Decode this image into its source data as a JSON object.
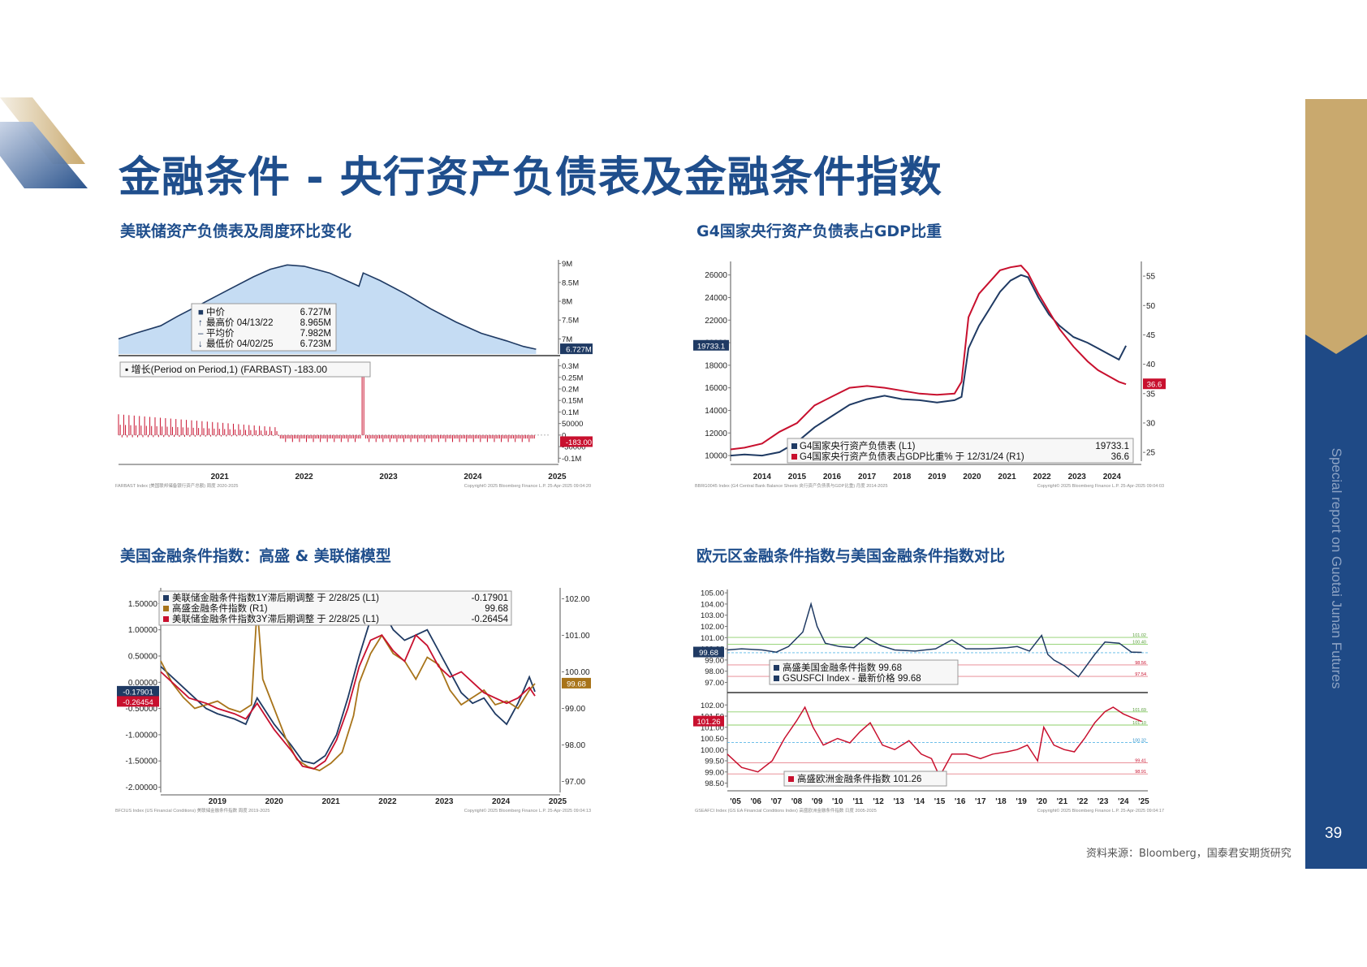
{
  "page": {
    "title": "金融条件 - 央行资产负债表及金融条件指数",
    "side_label": "Special report on Guotai Junan Futures",
    "page_number": "39",
    "source": "资料来源：Bloomberg，国泰君安期货研究",
    "colors": {
      "brand_blue": "#1f4e8c",
      "gold": "#c9a96e",
      "navy": "#1f4a86"
    }
  },
  "chart_data": [
    {
      "id": "fed-balance-sheet",
      "subtitle": "美联储资产负债表及周度环比变化",
      "type": "area",
      "x_ticks": [
        "2021",
        "2022",
        "2023",
        "2024",
        "2025"
      ],
      "upper": {
        "y_ticks": [
          "9M",
          "8.5M",
          "8M",
          "7.5M",
          "7M"
        ],
        "ylim": [
          6.6,
          9.1
        ],
        "x": [
          2020.3,
          2020.5,
          2020.8,
          2021.0,
          2021.3,
          2021.6,
          2021.9,
          2022.1,
          2022.3,
          2022.5,
          2022.8,
          2023.0,
          2023.15,
          2023.2,
          2023.4,
          2023.7,
          2024.0,
          2024.3,
          2024.6,
          2024.9,
          2025.1,
          2025.25
        ],
        "y": [
          7.0,
          7.15,
          7.35,
          7.6,
          7.95,
          8.3,
          8.65,
          8.85,
          8.965,
          8.93,
          8.75,
          8.55,
          8.4,
          8.75,
          8.55,
          8.2,
          7.8,
          7.45,
          7.15,
          6.95,
          6.8,
          6.727
        ],
        "last_label": "6.727M",
        "legend": [
          {
            "label": "中价",
            "value": "6.727M",
            "marker": "■"
          },
          {
            "label": "最高价 04/13/22",
            "value": "8.965M",
            "marker": "↑"
          },
          {
            "label": "平均价",
            "value": "7.982M",
            "marker": "–"
          },
          {
            "label": "最低价 04/02/25",
            "value": "6.723M",
            "marker": "↓"
          }
        ]
      },
      "lower": {
        "legend": "增长(Period on Period,1) (FARBAST) -183.00",
        "y_ticks": [
          "0.3M",
          "0.25M",
          "0.2M",
          "0.15M",
          "0.1M",
          "50000",
          "0",
          "-50000",
          "-0.1M"
        ],
        "ylim": [
          -0.12,
          0.33
        ],
        "last_label": "-183.00",
        "spike": {
          "x": 2023.2,
          "value": 0.3
        }
      },
      "footer_left": "FARBAST Index (美国联邦储备银行资产总额) 周度 2020-2025",
      "footer_right": "Copyright© 2025 Bloomberg Finance L.P.  25-Apr-2025 09:04:20"
    },
    {
      "id": "g4-cb-balance-gdp",
      "subtitle": "G4国家央行资产负债表占GDP比重",
      "type": "line",
      "x_ticks": [
        "2014",
        "2015",
        "2016",
        "2017",
        "2018",
        "2019",
        "2020",
        "2021",
        "2022",
        "2023",
        "2024"
      ],
      "xlim": [
        2013.6,
        2025.2
      ],
      "left_ticks": [
        "26000",
        "24000",
        "22000",
        "20000",
        "18000",
        "16000",
        "14000",
        "12000",
        "10000"
      ],
      "ylim_left": [
        9500,
        27200
      ],
      "right_ticks": [
        "55",
        "50",
        "45",
        "40",
        "35",
        "30",
        "25"
      ],
      "ylim_right": [
        23.5,
        57.5
      ],
      "series": [
        {
          "name": "G4国家央行资产负债表 (L1)",
          "axis": "left",
          "color": "#1f3a63",
          "x": [
            2013.6,
            2014.0,
            2014.5,
            2015.0,
            2015.5,
            2016.0,
            2016.5,
            2017.0,
            2017.5,
            2018.0,
            2018.5,
            2019.0,
            2019.5,
            2020.0,
            2020.2,
            2020.4,
            2020.7,
            2021.0,
            2021.3,
            2021.6,
            2021.9,
            2022.1,
            2022.4,
            2022.7,
            2023.0,
            2023.4,
            2023.8,
            2024.1,
            2024.4,
            2024.7,
            2024.9
          ],
          "y": [
            10000,
            10100,
            10000,
            10300,
            11200,
            12500,
            13500,
            14500,
            15000,
            15300,
            15000,
            14900,
            14700,
            14900,
            15200,
            19500,
            21500,
            23000,
            24500,
            25500,
            26000,
            25800,
            24000,
            22500,
            21500,
            20500,
            20000,
            19500,
            19000,
            18500,
            19733
          ]
        },
        {
          "name": "G4国家央行资产负债表占GDP比重% 于 12/31/24 (R1)",
          "axis": "right",
          "color": "#c8102e",
          "x": [
            2013.6,
            2014.0,
            2014.5,
            2015.0,
            2015.5,
            2016.0,
            2016.5,
            2017.0,
            2017.5,
            2018.0,
            2018.5,
            2019.0,
            2019.5,
            2020.0,
            2020.2,
            2020.4,
            2020.7,
            2021.0,
            2021.3,
            2021.6,
            2021.9,
            2022.1,
            2022.4,
            2022.7,
            2023.0,
            2023.4,
            2023.8,
            2024.1,
            2024.4,
            2024.7,
            2024.9
          ],
          "y": [
            25.5,
            25.8,
            26.5,
            28.5,
            30.0,
            33.0,
            34.5,
            36.0,
            36.3,
            36.0,
            35.5,
            35.0,
            34.8,
            35.0,
            37.0,
            48.0,
            52.0,
            54.0,
            56.0,
            56.5,
            56.8,
            55.5,
            52.0,
            49.0,
            46.0,
            43.0,
            40.5,
            39.0,
            38.0,
            37.0,
            36.6
          ]
        }
      ],
      "legend_values": [
        "19733.1",
        "36.6"
      ],
      "last_labels": [
        "19733.1",
        "36.6"
      ],
      "footer_left": "BBRG0045 Index (G4 Central Bank Balance Sheets 央行资产负债表与GDP比重) 月度 2014-2025",
      "footer_right": "Copyright© 2025 Bloomberg Finance L.P.  25-Apr-2025 09:04:03"
    },
    {
      "id": "us-fci-gs-fed",
      "subtitle": "美国金融条件指数：高盛 & 美联储模型",
      "type": "line",
      "x_ticks": [
        "2019",
        "2020",
        "2021",
        "2022",
        "2023",
        "2024",
        "2025"
      ],
      "xlim": [
        2018.5,
        2025.4
      ],
      "left_ticks": [
        "1.50000",
        "1.00000",
        "0.50000",
        "0.00000",
        "-0.50000",
        "-1.00000",
        "-1.50000",
        "-2.00000"
      ],
      "ylim_left": [
        -2.1,
        1.8
      ],
      "right_ticks": [
        "102.00",
        "101.00",
        "100.00",
        "99.00",
        "98.00",
        "97.00"
      ],
      "ylim_right": [
        96.7,
        102.3
      ],
      "series": [
        {
          "name": "美联储金融条件指数1Y滞后期调整 于 2/28/25 (L1) -0.17901",
          "axis": "left",
          "color": "#1f3a63",
          "x": [
            2018.5,
            2018.8,
            2019.0,
            2019.3,
            2019.5,
            2019.8,
            2020.0,
            2020.2,
            2020.5,
            2020.8,
            2021.0,
            2021.2,
            2021.4,
            2021.6,
            2021.8,
            2022.0,
            2022.2,
            2022.4,
            2022.6,
            2022.8,
            2023.0,
            2023.2,
            2023.4,
            2023.6,
            2023.8,
            2024.0,
            2024.2,
            2024.4,
            2024.6,
            2024.8,
            2025.0,
            2025.1
          ],
          "y": [
            0.3,
            0.0,
            -0.2,
            -0.5,
            -0.6,
            -0.7,
            -0.8,
            -0.3,
            -0.8,
            -1.2,
            -1.5,
            -1.55,
            -1.4,
            -1.0,
            -0.3,
            0.5,
            1.2,
            1.4,
            1.0,
            0.8,
            0.9,
            1.0,
            0.6,
            0.2,
            -0.2,
            -0.4,
            -0.3,
            -0.6,
            -0.8,
            -0.4,
            0.1,
            -0.18
          ]
        },
        {
          "name": "高盛金融条件指数 (R1) 99.68",
          "axis": "right",
          "color": "#a8741a",
          "x": [
            2018.5,
            2018.7,
            2018.9,
            2019.1,
            2019.3,
            2019.5,
            2019.7,
            2019.9,
            2020.1,
            2020.2,
            2020.3,
            2020.5,
            2020.7,
            2020.9,
            2021.1,
            2021.3,
            2021.5,
            2021.7,
            2021.9,
            2022.0,
            2022.2,
            2022.4,
            2022.6,
            2022.8,
            2023.0,
            2023.2,
            2023.4,
            2023.6,
            2023.8,
            2024.0,
            2024.2,
            2024.4,
            2024.6,
            2024.8,
            2025.0,
            2025.1
          ],
          "y": [
            100.3,
            99.7,
            99.3,
            99.0,
            99.1,
            99.2,
            99.0,
            98.9,
            99.1,
            101.8,
            99.8,
            99.0,
            98.2,
            97.6,
            97.4,
            97.3,
            97.5,
            97.8,
            98.8,
            99.7,
            100.5,
            101.0,
            100.5,
            100.3,
            99.8,
            100.4,
            100.2,
            99.5,
            99.1,
            99.3,
            99.5,
            99.1,
            99.2,
            99.0,
            99.5,
            99.68
          ]
        },
        {
          "name": "美联储金融条件指数3Y滞后期调整 于 2/28/25 (L1) -0.26454",
          "axis": "left",
          "color": "#c8102e",
          "x": [
            2018.5,
            2018.8,
            2019.0,
            2019.3,
            2019.5,
            2019.8,
            2020.0,
            2020.2,
            2020.5,
            2020.8,
            2021.0,
            2021.2,
            2021.4,
            2021.6,
            2021.8,
            2022.0,
            2022.2,
            2022.4,
            2022.6,
            2022.8,
            2023.0,
            2023.2,
            2023.4,
            2023.6,
            2023.8,
            2024.0,
            2024.2,
            2024.4,
            2024.6,
            2024.8,
            2025.0,
            2025.1
          ],
          "y": [
            0.2,
            -0.1,
            -0.3,
            -0.4,
            -0.5,
            -0.6,
            -0.7,
            -0.4,
            -0.9,
            -1.3,
            -1.6,
            -1.65,
            -1.5,
            -1.1,
            -0.5,
            0.3,
            0.8,
            0.9,
            0.6,
            0.4,
            0.9,
            0.7,
            0.3,
            0.1,
            0.2,
            0.0,
            -0.2,
            -0.3,
            -0.4,
            -0.3,
            -0.1,
            -0.26
          ]
        }
      ],
      "legend_values": [
        "-0.17901",
        "99.68",
        "-0.26454"
      ],
      "last_labels": [
        "-0.17901",
        "99.68",
        "-0.26454"
      ],
      "footer_left": "BFCIUS Index (US Financial Conditions) 美联储金融条件指数 周度 2019-2025",
      "footer_right": "Copyright© 2025 Bloomberg Finance L.P.  25-Apr-2025 09:04:13"
    },
    {
      "id": "ea-vs-us-fci",
      "subtitle": "欧元区金融条件指数与美国金融条件指数对比",
      "type": "line",
      "x_ticks": [
        "'05",
        "'06",
        "'07",
        "'08",
        "'09",
        "'10",
        "'11",
        "'12",
        "'13",
        "'14",
        "'15",
        "'16",
        "'17",
        "'18",
        "'19",
        "'20",
        "'21",
        "'22",
        "'23",
        "'24",
        "'25"
      ],
      "xlim": [
        2004.8,
        2025.4
      ],
      "upper": {
        "y_ticks": [
          "105.00",
          "104.00",
          "103.00",
          "102.00",
          "101.00",
          "100.00",
          "99.00",
          "98.00",
          "97.00"
        ],
        "ylim": [
          96.6,
          105.3
        ],
        "color": "#1f3a63",
        "x": [
          2004.8,
          2005.5,
          2006.5,
          2007.2,
          2007.8,
          2008.5,
          2008.9,
          2009.2,
          2009.6,
          2010.3,
          2011.0,
          2011.6,
          2012.3,
          2013.0,
          2014.0,
          2015.0,
          2015.8,
          2016.5,
          2017.5,
          2018.5,
          2019.0,
          2019.6,
          2020.2,
          2020.5,
          2020.8,
          2021.3,
          2022.0,
          2022.8,
          2023.3,
          2024.0,
          2024.6,
          2025.1
        ],
        "y": [
          99.9,
          100.0,
          99.9,
          99.7,
          100.2,
          101.5,
          104.0,
          102.0,
          100.5,
          100.2,
          100.1,
          101.0,
          100.3,
          99.9,
          99.8,
          100.0,
          100.8,
          100.0,
          100.0,
          100.1,
          100.2,
          99.8,
          101.2,
          99.5,
          99.0,
          98.5,
          97.5,
          99.5,
          100.6,
          100.5,
          99.7,
          99.68
        ],
        "last_label": "99.68",
        "legend": [
          "高盛美国金融条件指数 99.68",
          "GSUSFCI Index - 最新价格 99.68"
        ],
        "ref_labels": [
          "101.02",
          "100.40",
          "98.56",
          "97.54"
        ]
      },
      "lower": {
        "y_ticks": [
          "102.00",
          "101.50",
          "101.00",
          "100.50",
          "100.00",
          "99.50",
          "99.00",
          "98.50"
        ],
        "ylim": [
          98.3,
          102.3
        ],
        "color": "#c8102e",
        "x": [
          2004.8,
          2005.5,
          2006.3,
          2007.0,
          2007.6,
          2008.2,
          2008.6,
          2009.0,
          2009.5,
          2010.2,
          2010.8,
          2011.3,
          2011.8,
          2012.4,
          2013.0,
          2013.7,
          2014.3,
          2014.8,
          2015.2,
          2015.8,
          2016.5,
          2017.2,
          2017.8,
          2018.5,
          2019.0,
          2019.5,
          2020.0,
          2020.3,
          2020.8,
          2021.3,
          2021.8,
          2022.3,
          2022.8,
          2023.3,
          2023.7,
          2024.2,
          2024.7,
          2025.1
        ],
        "y": [
          99.8,
          99.2,
          99.0,
          99.5,
          100.5,
          101.3,
          101.9,
          101.0,
          100.2,
          100.5,
          100.3,
          100.8,
          101.2,
          100.2,
          100.0,
          100.4,
          99.8,
          99.6,
          98.8,
          99.8,
          99.8,
          99.6,
          99.8,
          99.9,
          100.0,
          100.2,
          99.5,
          101.0,
          100.2,
          100.0,
          99.9,
          100.5,
          101.2,
          101.7,
          101.9,
          101.6,
          101.4,
          101.26
        ],
        "last_label": "101.26",
        "legend": "高盛欧洲金融条件指数 101.26",
        "ref_labels": [
          "101.69",
          "101.10",
          "100.32",
          "99.41",
          "98.91"
        ]
      },
      "footer_left": "GSEAFCI Index (GS EA Financial Conditions Index) 高盛欧洲金融条件指数 日度 2005-2025",
      "footer_right": "Copyright© 2025 Bloomberg Finance L.P.  25-Apr-2025 09:04:17"
    }
  ]
}
